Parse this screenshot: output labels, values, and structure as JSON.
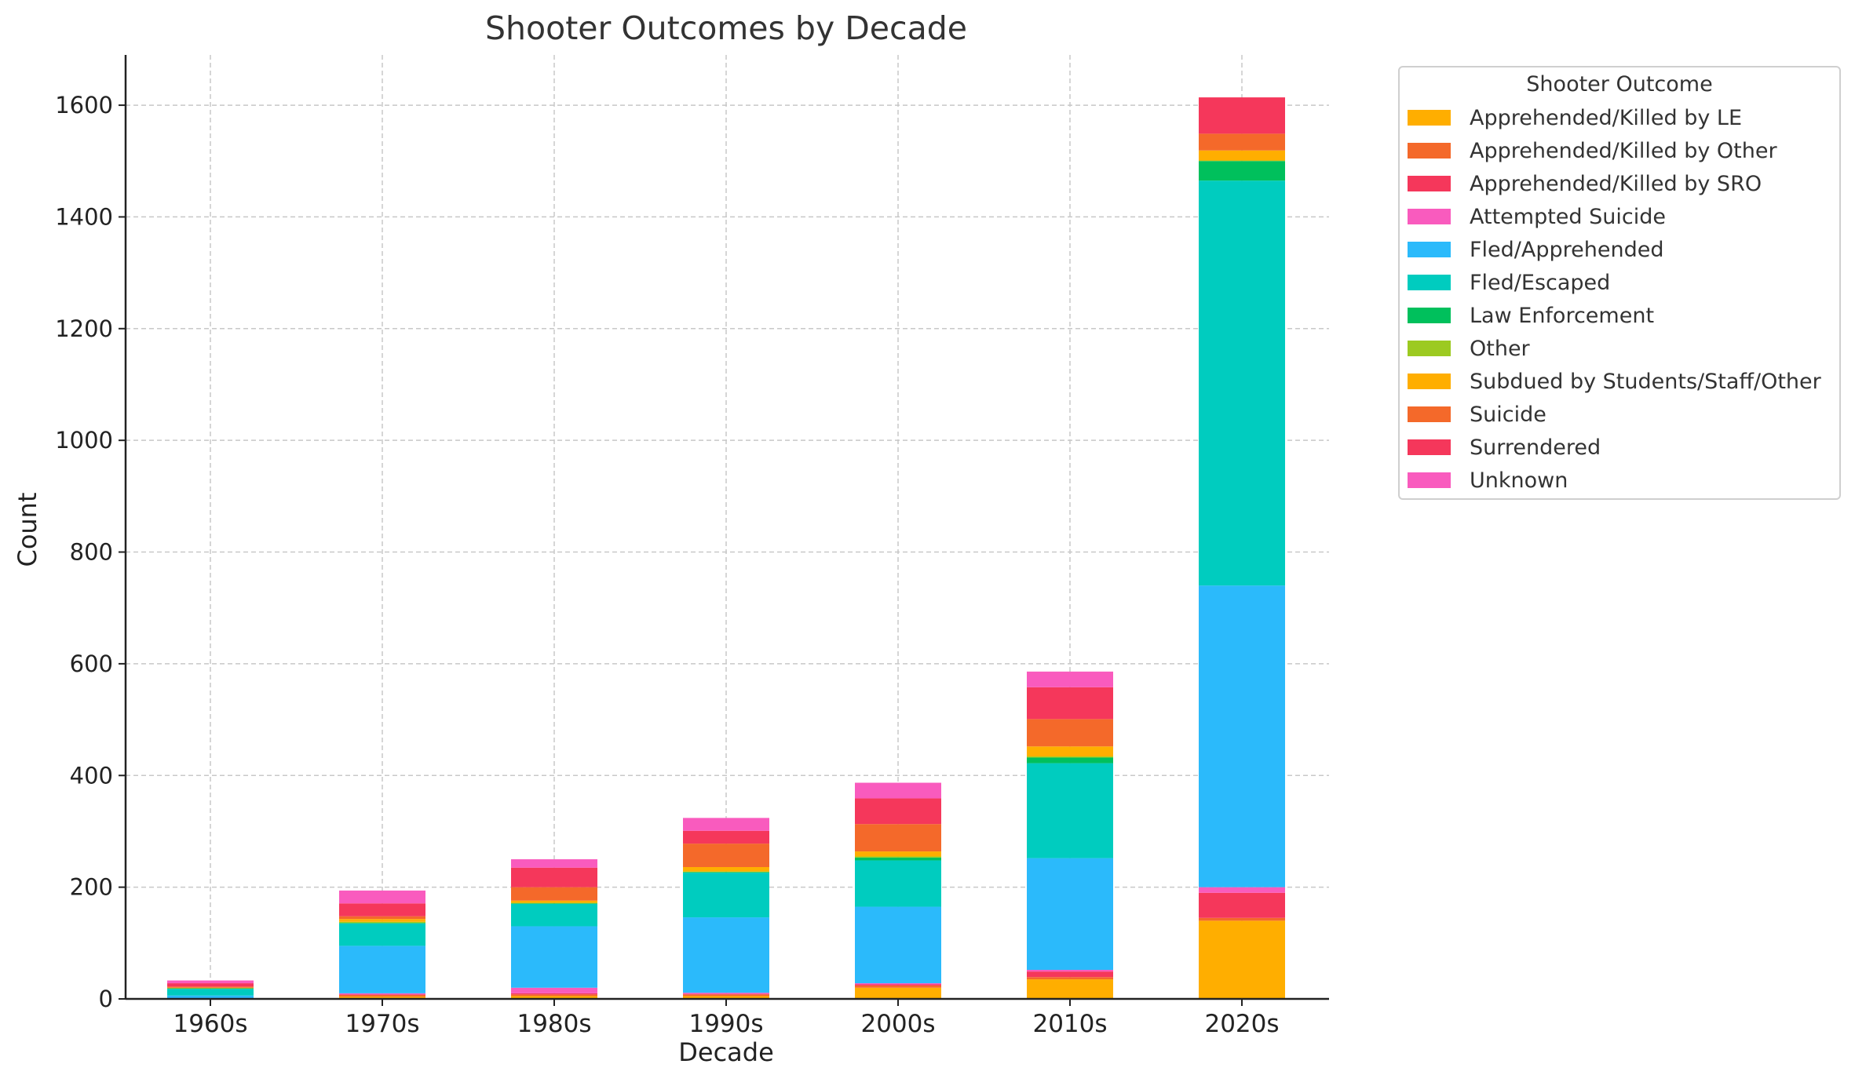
{
  "chart_data": {
    "type": "bar",
    "stacked": true,
    "title": "Shooter Outcomes by Decade",
    "xlabel": "Decade",
    "ylabel": "Count",
    "ylim": [
      0,
      1690
    ],
    "yticks": [
      0,
      200,
      400,
      600,
      800,
      1000,
      1200,
      1400,
      1600
    ],
    "grid": true,
    "legend_title": "Shooter Outcome",
    "legend_position": "outside-right-top",
    "categories": [
      "1960s",
      "1970s",
      "1980s",
      "1990s",
      "2000s",
      "2010s",
      "2020s"
    ],
    "series": [
      {
        "name": "Apprehended/Killed by LE",
        "color": "#FFAE00",
        "values": [
          0,
          4,
          5,
          5,
          20,
          35,
          140
        ]
      },
      {
        "name": "Apprehended/Killed by Other",
        "color": "#F4692A",
        "values": [
          0,
          3,
          3,
          3,
          4,
          4,
          5
        ]
      },
      {
        "name": "Apprehended/Killed by SRO",
        "color": "#F5375B",
        "values": [
          0,
          1,
          2,
          1,
          2,
          10,
          45
        ]
      },
      {
        "name": "Attempted Suicide",
        "color": "#F95BBE",
        "values": [
          1,
          2,
          10,
          2,
          2,
          3,
          10
        ]
      },
      {
        "name": "Fled/Apprehended",
        "color": "#2BBAFB",
        "values": [
          5,
          85,
          110,
          135,
          137,
          200,
          540
        ]
      },
      {
        "name": "Fled/Escaped",
        "color": "#00CCBF",
        "values": [
          12,
          40,
          40,
          80,
          83,
          170,
          725
        ]
      },
      {
        "name": "Law Enforcement",
        "color": "#00C05C",
        "values": [
          1,
          1,
          1,
          1,
          5,
          10,
          35
        ]
      },
      {
        "name": "Other",
        "color": "#9CCA21",
        "values": [
          0,
          2,
          1,
          1,
          2,
          2,
          1
        ]
      },
      {
        "name": "Subdued by Students/Staff/Other",
        "color": "#FFAE00",
        "values": [
          1,
          5,
          4,
          8,
          9,
          18,
          18
        ]
      },
      {
        "name": "Suicide",
        "color": "#F4692A",
        "values": [
          2,
          5,
          24,
          42,
          49,
          49,
          30
        ]
      },
      {
        "name": "Surrendered",
        "color": "#F5375B",
        "values": [
          6,
          23,
          35,
          23,
          46,
          57,
          65
        ]
      },
      {
        "name": "Unknown",
        "color": "#F95BBE",
        "values": [
          5,
          23,
          15,
          23,
          28,
          28,
          0
        ]
      }
    ]
  }
}
